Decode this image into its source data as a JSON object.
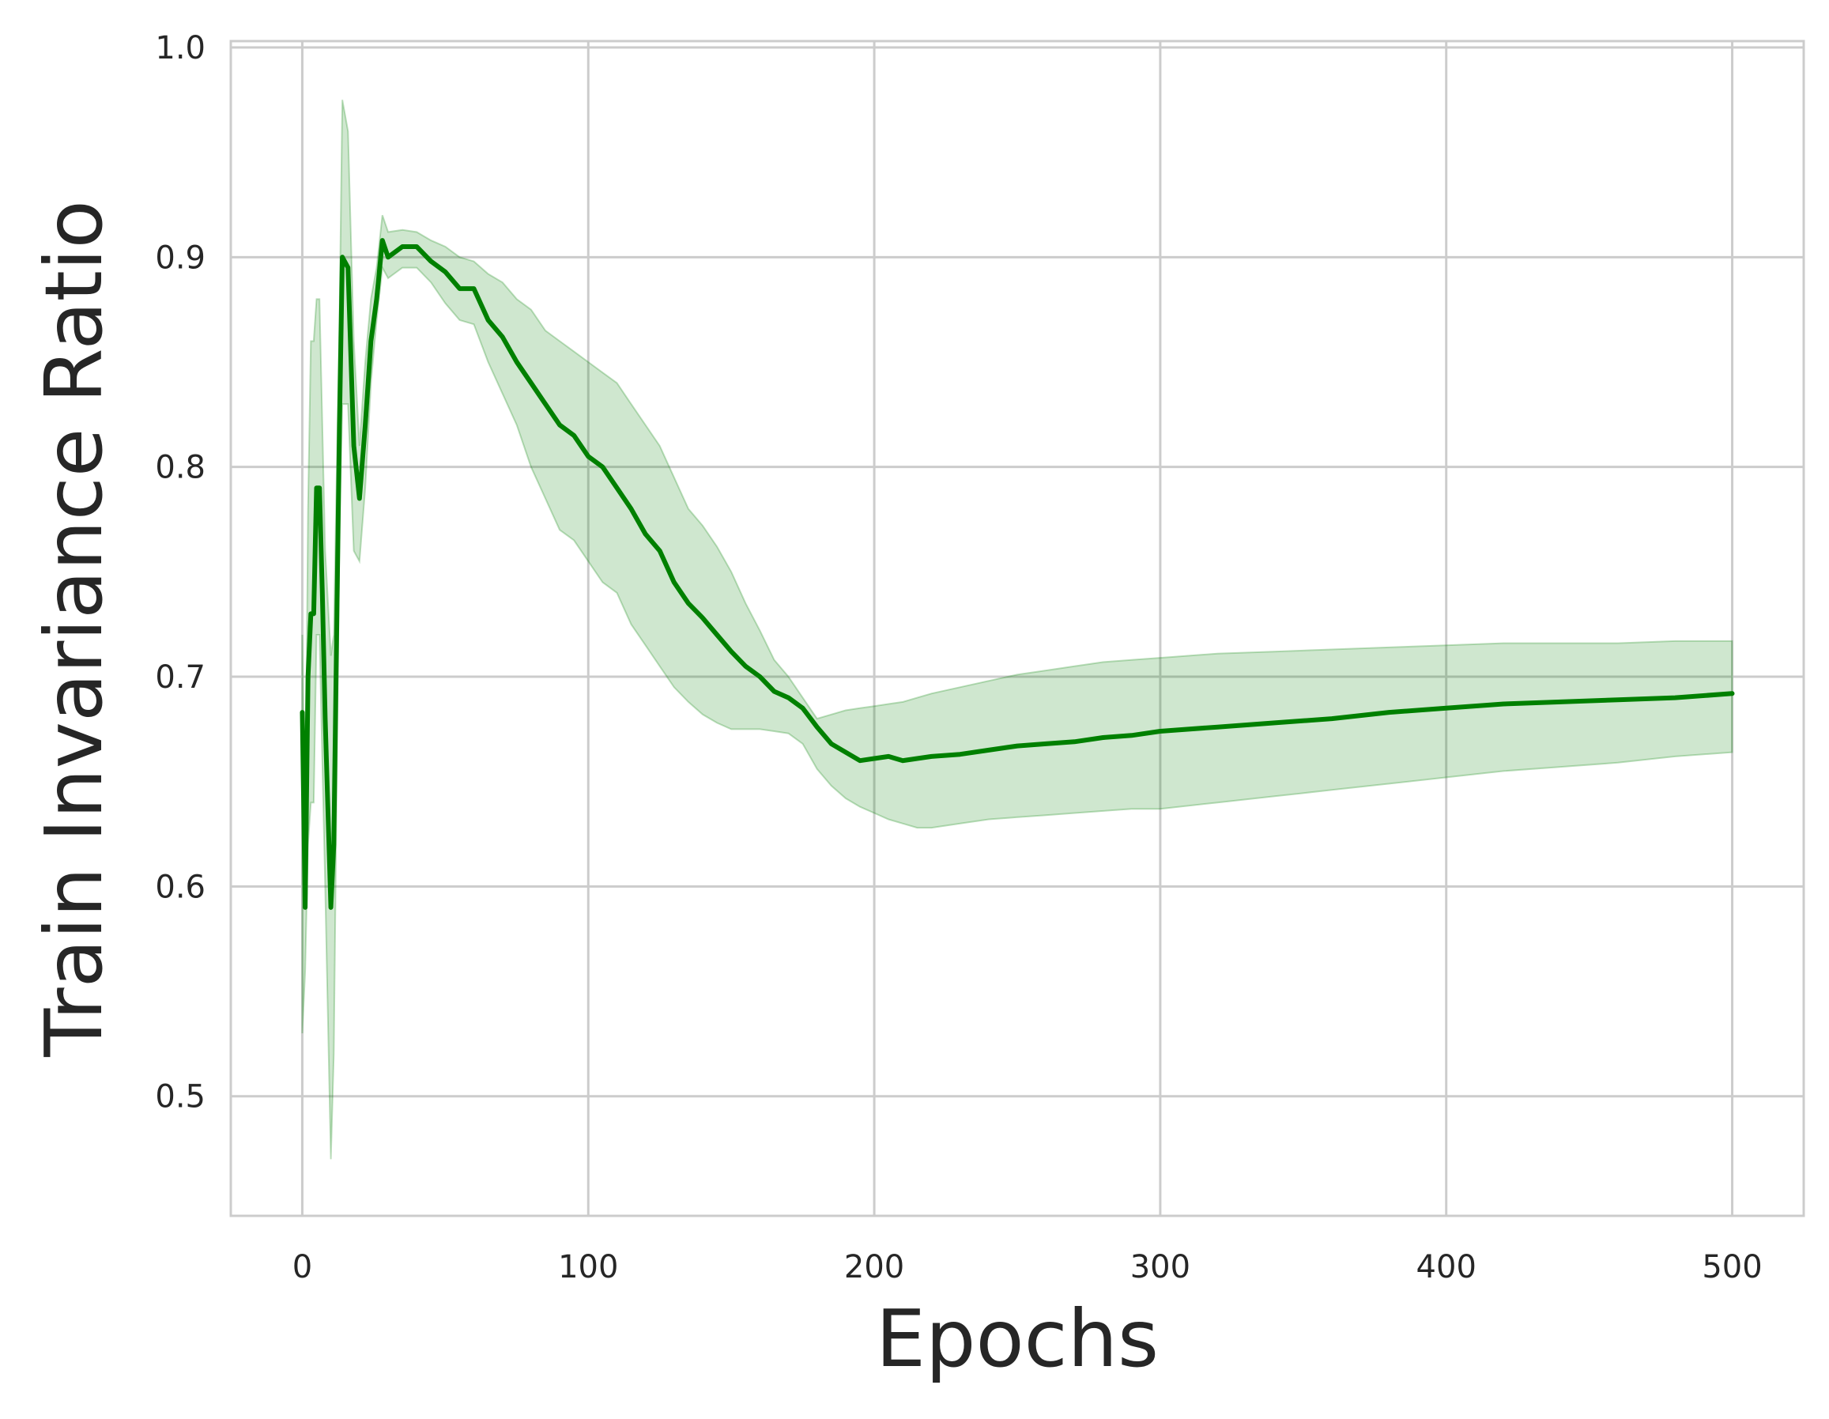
{
  "chart_data": {
    "type": "line",
    "title": "",
    "xlabel": "Epochs",
    "ylabel": "Train Invariance Ratio",
    "xlim": [
      -25,
      525
    ],
    "ylim": [
      0.443,
      1.003
    ],
    "xticks": [
      0,
      100,
      200,
      300,
      400,
      500
    ],
    "xtick_labels": [
      "0",
      "100",
      "200",
      "300",
      "400",
      "500"
    ],
    "yticks": [
      0.5,
      0.6,
      0.7,
      0.8,
      0.9,
      1.0
    ],
    "ytick_labels": [
      "0.5",
      "0.6",
      "0.7",
      "0.8",
      "0.9",
      "1.0"
    ],
    "grid": true,
    "colors": {
      "line": "#008000",
      "band": "#008000",
      "grid": "#cccccc",
      "text": "#262626"
    },
    "series": [
      {
        "x": [
          0,
          1,
          2,
          3,
          4,
          5,
          6,
          7,
          8,
          10,
          11,
          13,
          14,
          16,
          18,
          20,
          22,
          24,
          26,
          28,
          30,
          35,
          40,
          45,
          50,
          55,
          60,
          65,
          70,
          75,
          80,
          85,
          90,
          95,
          100,
          105,
          110,
          115,
          120,
          125,
          130,
          135,
          140,
          145,
          150,
          155,
          160,
          165,
          170,
          175,
          180,
          185,
          190,
          195,
          200,
          205,
          210,
          215,
          220,
          230,
          240,
          250,
          260,
          270,
          280,
          290,
          300,
          320,
          340,
          360,
          380,
          400,
          420,
          440,
          460,
          480,
          500
        ],
        "y": [
          0.683,
          0.59,
          0.7,
          0.73,
          0.73,
          0.79,
          0.79,
          0.74,
          0.68,
          0.59,
          0.62,
          0.82,
          0.9,
          0.895,
          0.81,
          0.785,
          0.82,
          0.86,
          0.88,
          0.908,
          0.9,
          0.905,
          0.905,
          0.898,
          0.893,
          0.885,
          0.885,
          0.87,
          0.862,
          0.85,
          0.84,
          0.83,
          0.82,
          0.815,
          0.805,
          0.8,
          0.79,
          0.78,
          0.768,
          0.76,
          0.745,
          0.735,
          0.728,
          0.72,
          0.712,
          0.705,
          0.7,
          0.693,
          0.69,
          0.685,
          0.676,
          0.668,
          0.664,
          0.66,
          0.661,
          0.662,
          0.66,
          0.661,
          0.662,
          0.663,
          0.665,
          0.667,
          0.668,
          0.669,
          0.671,
          0.672,
          0.674,
          0.676,
          0.678,
          0.68,
          0.683,
          0.685,
          0.687,
          0.688,
          0.689,
          0.69,
          0.692
        ],
        "lower": [
          0.53,
          0.56,
          0.62,
          0.64,
          0.64,
          0.72,
          0.72,
          0.66,
          0.6,
          0.47,
          0.52,
          0.77,
          0.83,
          0.83,
          0.76,
          0.755,
          0.79,
          0.84,
          0.87,
          0.895,
          0.89,
          0.895,
          0.895,
          0.888,
          0.878,
          0.87,
          0.868,
          0.85,
          0.835,
          0.82,
          0.8,
          0.785,
          0.77,
          0.765,
          0.755,
          0.745,
          0.74,
          0.725,
          0.715,
          0.705,
          0.695,
          0.688,
          0.682,
          0.678,
          0.675,
          0.675,
          0.675,
          0.674,
          0.673,
          0.668,
          0.656,
          0.648,
          0.642,
          0.638,
          0.635,
          0.632,
          0.63,
          0.628,
          0.628,
          0.63,
          0.632,
          0.633,
          0.634,
          0.635,
          0.636,
          0.637,
          0.637,
          0.64,
          0.643,
          0.646,
          0.649,
          0.652,
          0.655,
          0.657,
          0.659,
          0.662,
          0.664
        ],
        "upper": [
          0.72,
          0.62,
          0.78,
          0.86,
          0.86,
          0.88,
          0.88,
          0.82,
          0.76,
          0.71,
          0.72,
          0.87,
          0.975,
          0.96,
          0.86,
          0.81,
          0.85,
          0.88,
          0.895,
          0.92,
          0.912,
          0.913,
          0.912,
          0.908,
          0.905,
          0.9,
          0.898,
          0.892,
          0.888,
          0.88,
          0.875,
          0.865,
          0.86,
          0.855,
          0.85,
          0.845,
          0.84,
          0.83,
          0.82,
          0.81,
          0.795,
          0.78,
          0.772,
          0.762,
          0.75,
          0.735,
          0.722,
          0.708,
          0.7,
          0.69,
          0.68,
          0.682,
          0.684,
          0.685,
          0.686,
          0.687,
          0.688,
          0.69,
          0.692,
          0.695,
          0.698,
          0.701,
          0.703,
          0.705,
          0.707,
          0.708,
          0.709,
          0.711,
          0.712,
          0.713,
          0.714,
          0.715,
          0.716,
          0.716,
          0.716,
          0.717,
          0.717
        ]
      }
    ]
  }
}
